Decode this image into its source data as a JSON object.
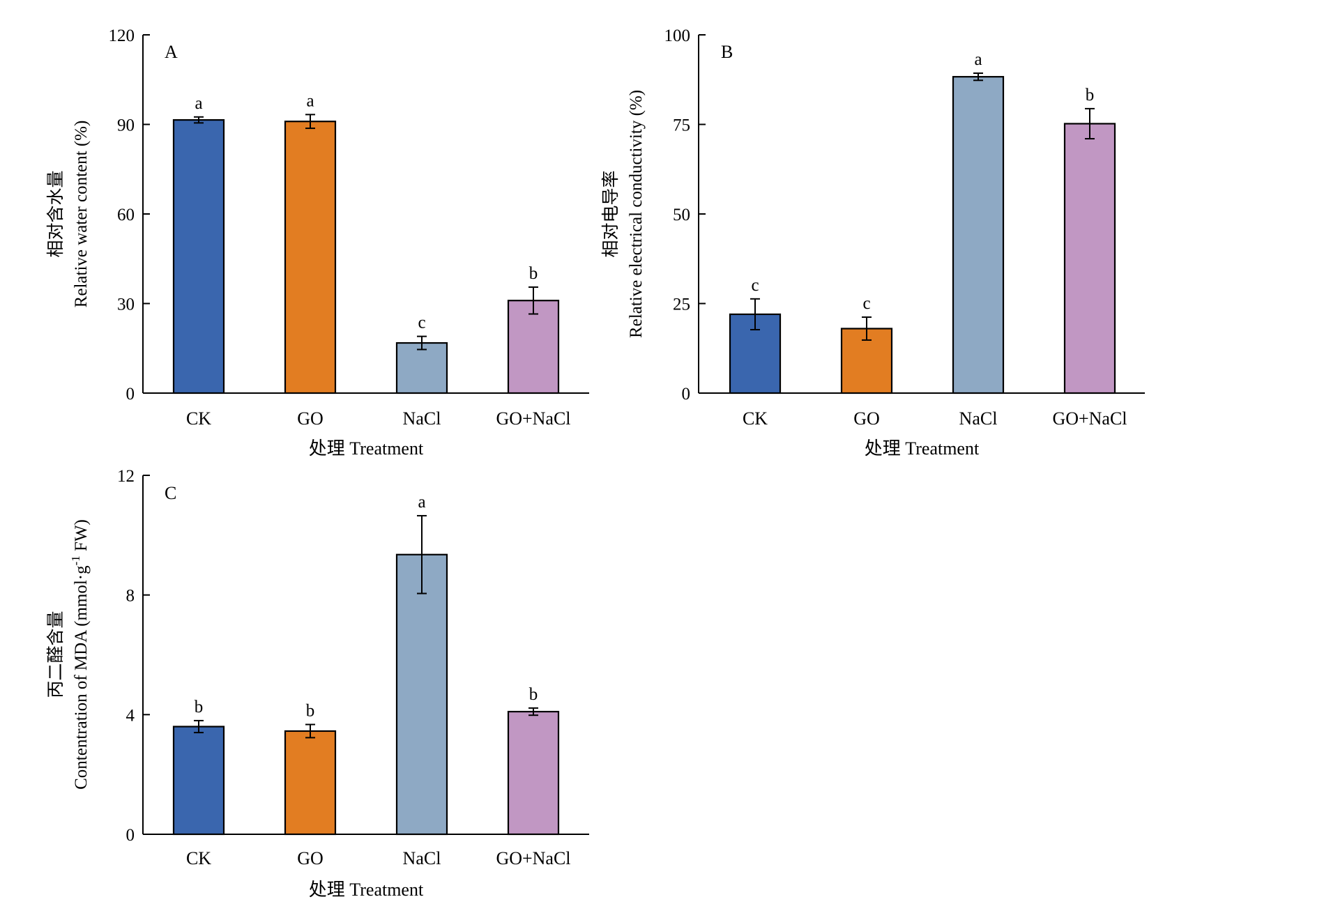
{
  "colors": {
    "CK": "#3a66ae",
    "GO": "#e27d22",
    "NaCl": "#8ea9c4",
    "GO+NaCl": "#c197c3",
    "axis": "#000000"
  },
  "chart_data": [
    {
      "type": "bar",
      "panel": "A",
      "categories": [
        "CK",
        "GO",
        "NaCl",
        "GO+NaCl"
      ],
      "values": [
        91.5,
        91.0,
        16.8,
        31.0
      ],
      "errors": [
        1.0,
        2.3,
        2.2,
        4.5
      ],
      "significance": [
        "a",
        "a",
        "c",
        "b"
      ],
      "xlabel": "处理 Treatment",
      "ylabel_cn": "相对含水量",
      "ylabel_en": "Relative water content (%)",
      "ylim": [
        0,
        120
      ],
      "yticks": [
        0,
        30,
        60,
        90,
        120
      ],
      "ytick_labels": [
        "0",
        "30",
        "60",
        "90",
        "120"
      ],
      "grid": false
    },
    {
      "type": "bar",
      "panel": "B",
      "categories": [
        "CK",
        "GO",
        "NaCl",
        "GO+NaCl"
      ],
      "values": [
        22.0,
        18.0,
        88.3,
        75.2
      ],
      "errors": [
        4.3,
        3.2,
        1.0,
        4.2
      ],
      "significance": [
        "c",
        "c",
        "a",
        "b"
      ],
      "xlabel": "处理 Treatment",
      "ylabel_cn": "相对电导率",
      "ylabel_en": "Relative electrical conductivity (%)",
      "ylim": [
        0,
        100
      ],
      "yticks": [
        0,
        25,
        50,
        75,
        100
      ],
      "ytick_labels": [
        "0",
        "25",
        "50",
        "75",
        "100"
      ],
      "grid": false
    },
    {
      "type": "bar",
      "panel": "C",
      "categories": [
        "CK",
        "GO",
        "NaCl",
        "GO+NaCl"
      ],
      "values": [
        3.6,
        3.45,
        9.35,
        4.1
      ],
      "errors": [
        0.2,
        0.22,
        1.3,
        0.12
      ],
      "significance": [
        "b",
        "b",
        "a",
        "b"
      ],
      "xlabel": "处理 Treatment",
      "ylabel_cn": "丙二醛含量",
      "ylabel_en_prefix": "Contentration of MDA (mmol·g",
      "ylabel_en_sup": "-1",
      "ylabel_en_suffix": " FW)",
      "ylim": [
        0,
        12
      ],
      "yticks": [
        0,
        4,
        8,
        12
      ],
      "ytick_labels": [
        "0",
        "4",
        "8",
        "12"
      ],
      "grid": false
    }
  ]
}
